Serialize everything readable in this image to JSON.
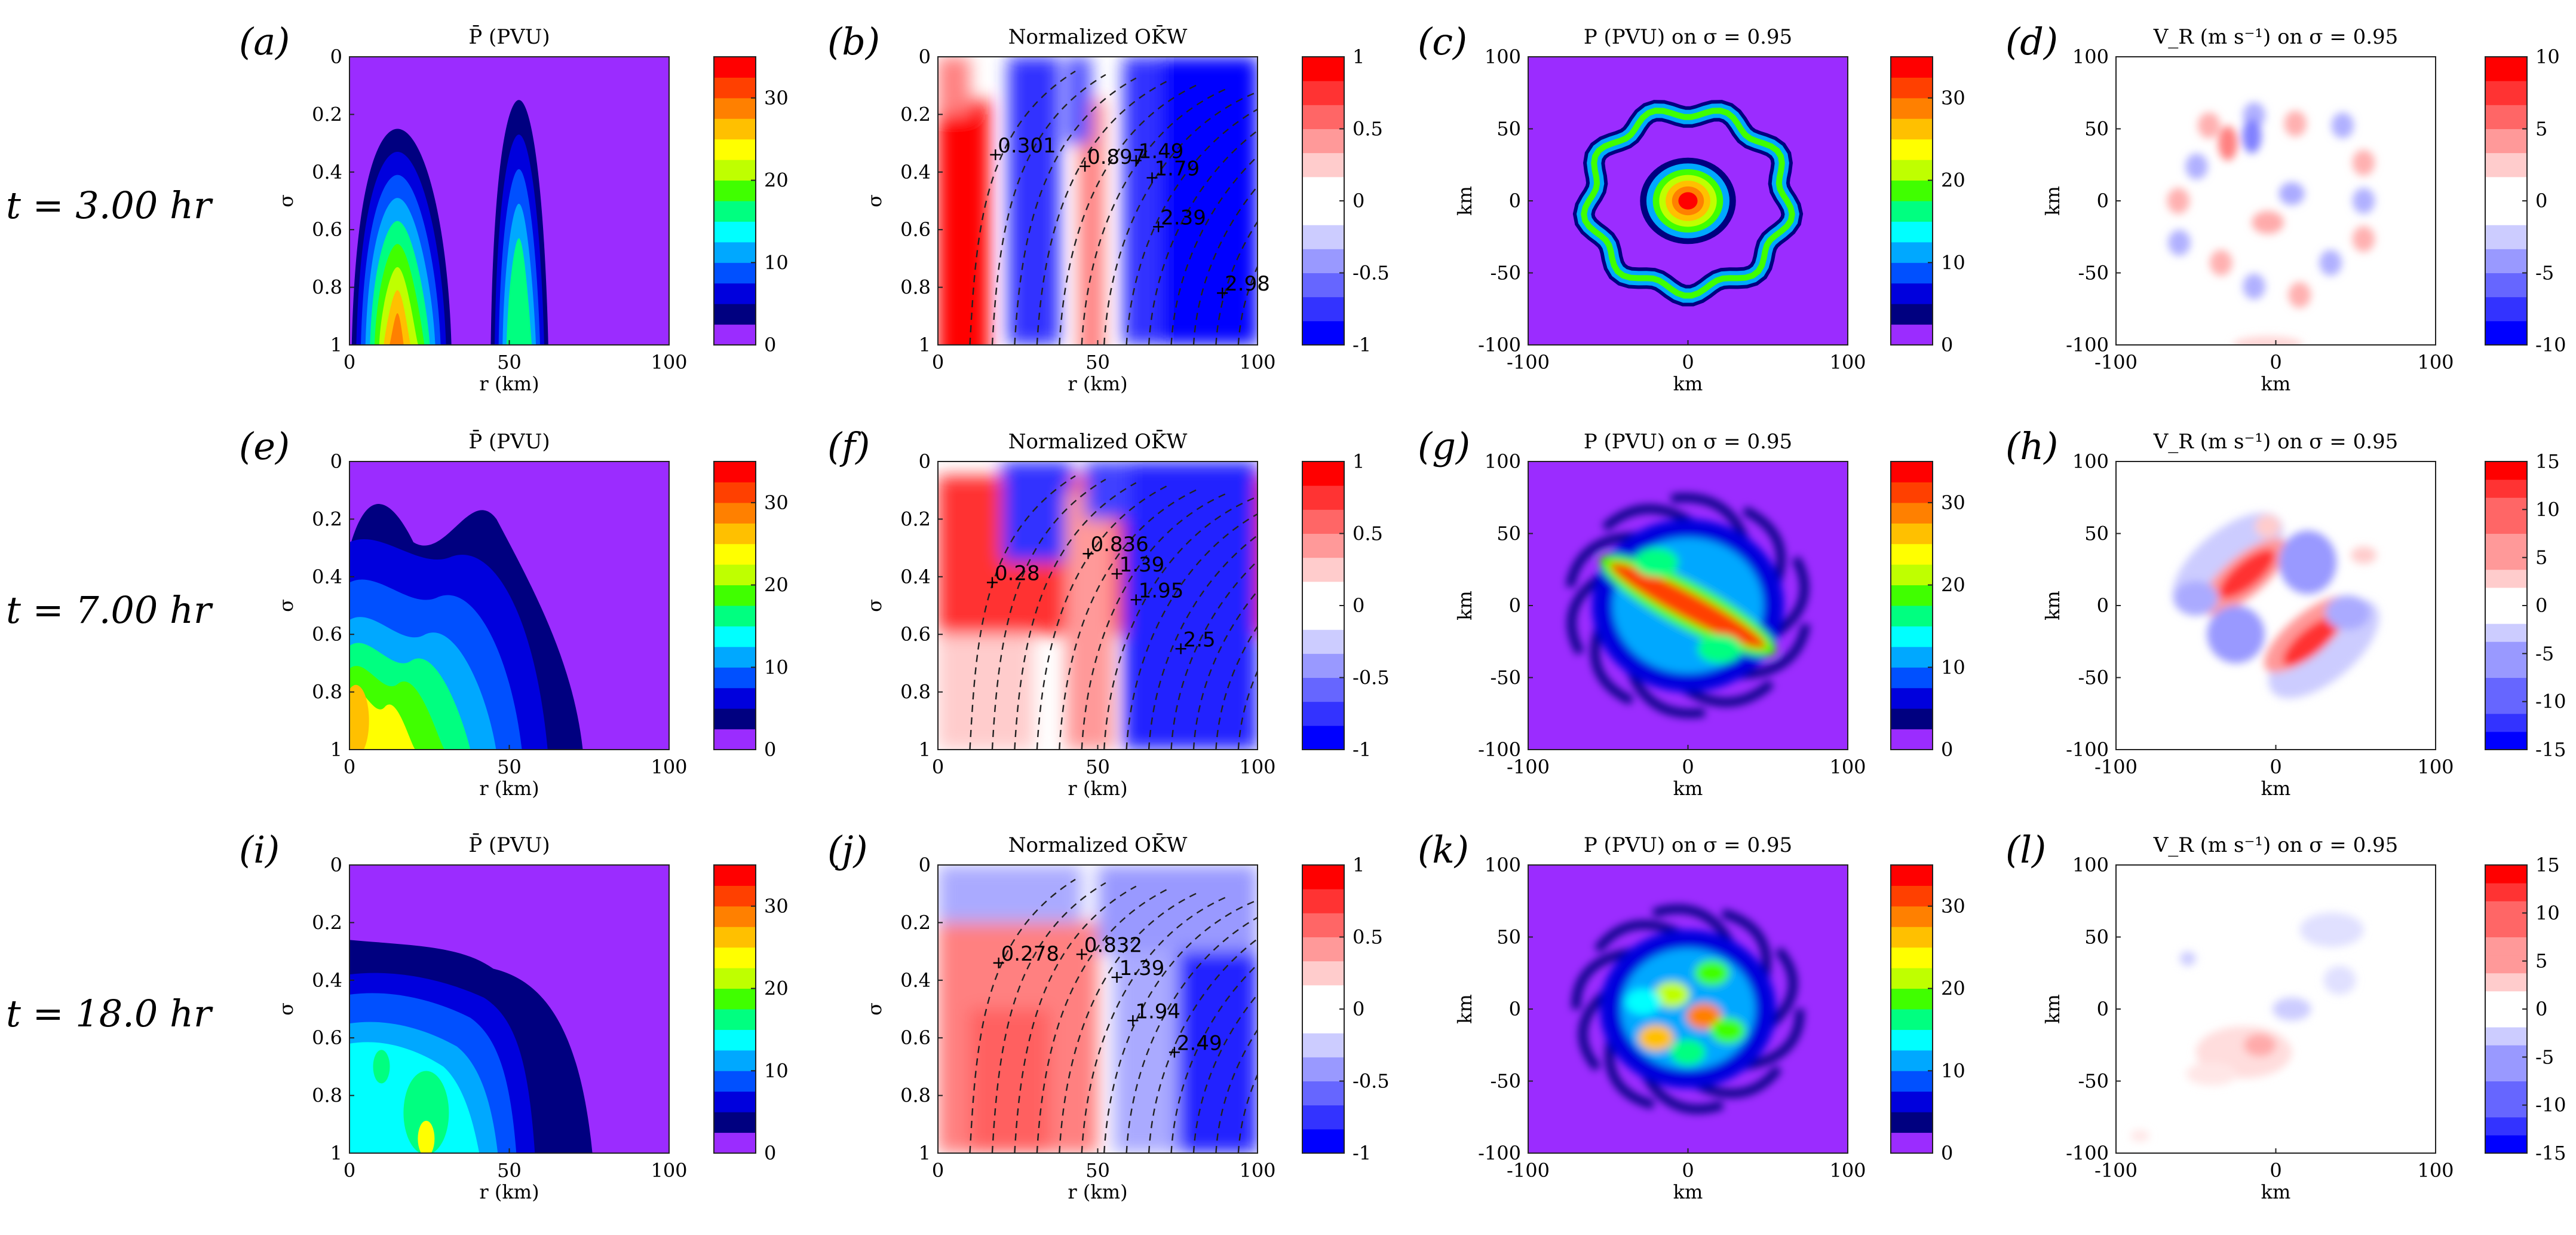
{
  "figure": {
    "row_labels": [
      "t = 3.00 hr",
      "t = 7.00 hr",
      "t = 18.0 hr"
    ]
  },
  "colormaps": {
    "pv": [
      "#9b2cff",
      "#000080",
      "#0000dd",
      "#0050ff",
      "#00a8ff",
      "#00ffff",
      "#00ff80",
      "#40ff00",
      "#bfff00",
      "#ffff00",
      "#ffc000",
      "#ff8000",
      "#ff4000",
      "#ff0000"
    ],
    "div": [
      "#0000ff",
      "#2a2aff",
      "#5555ff",
      "#8080ff",
      "#aaaaff",
      "#d5d5ff",
      "#ffffff",
      "#ffd5d5",
      "#ffaaaa",
      "#ff8080",
      "#ff5555",
      "#2a2aff",
      "#ff0000"
    ]
  },
  "chart_data": [
    {
      "panel": "(a)",
      "type": "heatmap",
      "kind": "pbar",
      "title": "P̄ (PVU)",
      "xlabel": "r (km)",
      "ylabel": "σ",
      "xlim": [
        0,
        100
      ],
      "ylim": [
        0,
        1
      ],
      "xticks": [
        "0",
        "50",
        "100"
      ],
      "yticks": [
        "0",
        "0.2",
        "0.4",
        "0.6",
        "0.8",
        "1"
      ],
      "colorbar": {
        "range": [
          0,
          35
        ],
        "ticks": [
          "0",
          "10",
          "20",
          "30"
        ]
      },
      "blobs": [
        {
          "r": 15,
          "sigma": 0.95,
          "peak": 30,
          "wr": 13,
          "ws": 0.45
        },
        {
          "r": 52,
          "sigma": 0.95,
          "peak": 14,
          "wr": 7,
          "ws": 0.45
        }
      ]
    },
    {
      "panel": "(b)",
      "type": "heatmap",
      "kind": "okw",
      "title": "Normalized OK̄W",
      "xlabel": "r (km)",
      "ylabel": "σ",
      "xlim": [
        0,
        100
      ],
      "ylim": [
        0,
        1
      ],
      "xticks": [
        "0",
        "50",
        "100"
      ],
      "yticks": [
        "0",
        "0.2",
        "0.4",
        "0.6",
        "0.8",
        "1"
      ],
      "colorbar": {
        "range": [
          -1,
          1
        ],
        "ticks": [
          "-1",
          "-0.5",
          "0",
          "0.5",
          "1"
        ]
      },
      "annotations": [
        {
          "label": "0.301",
          "r": 18,
          "sigma": 0.34
        },
        {
          "label": "0.897",
          "r": 46,
          "sigma": 0.38
        },
        {
          "label": "1.49",
          "r": 62,
          "sigma": 0.36
        },
        {
          "label": "1.79",
          "r": 67,
          "sigma": 0.42
        },
        {
          "label": "2.39",
          "r": 69,
          "sigma": 0.59
        },
        {
          "label": "2.98",
          "r": 89,
          "sigma": 0.82
        }
      ]
    },
    {
      "panel": "(c)",
      "type": "heatmap",
      "kind": "pplan",
      "title": "P (PVU) on σ = 0.95",
      "xlabel": "km",
      "ylabel": "km",
      "xlim": [
        -100,
        100
      ],
      "ylim": [
        -100,
        100
      ],
      "xticks": [
        "-100",
        "0",
        "100"
      ],
      "yticks": [
        "100",
        "50",
        "0",
        "-50",
        "-100"
      ],
      "colorbar": {
        "range": [
          0,
          35
        ],
        "ticks": [
          "0",
          "10",
          "20",
          "30"
        ]
      }
    },
    {
      "panel": "(d)",
      "type": "heatmap",
      "kind": "vr",
      "title": "V_R (m s⁻¹) on σ = 0.95",
      "xlabel": "km",
      "ylabel": "km",
      "xlim": [
        -100,
        100
      ],
      "ylim": [
        -100,
        100
      ],
      "xticks": [
        "-100",
        "0",
        "100"
      ],
      "yticks": [
        "100",
        "50",
        "0",
        "-50",
        "-100"
      ],
      "colorbar": {
        "range": [
          -10,
          10
        ],
        "ticks": [
          "-10",
          "-5",
          "0",
          "5",
          "10"
        ]
      }
    },
    {
      "panel": "(e)",
      "type": "heatmap",
      "kind": "pbar",
      "title": "P̄ (PVU)",
      "xlabel": "r (km)",
      "ylabel": "σ",
      "xlim": [
        0,
        100
      ],
      "ylim": [
        0,
        1
      ],
      "xticks": [
        "0",
        "50",
        "100"
      ],
      "yticks": [
        "0",
        "0.2",
        "0.4",
        "0.6",
        "0.8",
        "1"
      ],
      "colorbar": {
        "range": [
          0,
          35
        ],
        "ticks": [
          "0",
          "10",
          "20",
          "30"
        ]
      }
    },
    {
      "panel": "(f)",
      "type": "heatmap",
      "kind": "okw",
      "title": "Normalized OK̄W",
      "xlabel": "r (km)",
      "ylabel": "σ",
      "xlim": [
        0,
        100
      ],
      "ylim": [
        0,
        1
      ],
      "xticks": [
        "0",
        "50",
        "100"
      ],
      "yticks": [
        "0",
        "0.2",
        "0.4",
        "0.6",
        "0.8",
        "1"
      ],
      "colorbar": {
        "range": [
          -1,
          1
        ],
        "ticks": [
          "-1",
          "-0.5",
          "0",
          "0.5",
          "1"
        ]
      },
      "annotations": [
        {
          "label": "0.28",
          "r": 17,
          "sigma": 0.42
        },
        {
          "label": "0.836",
          "r": 47,
          "sigma": 0.32
        },
        {
          "label": "1.39",
          "r": 56,
          "sigma": 0.39
        },
        {
          "label": "1.95",
          "r": 62,
          "sigma": 0.48
        },
        {
          "label": "2.5",
          "r": 76,
          "sigma": 0.65
        }
      ]
    },
    {
      "panel": "(g)",
      "type": "heatmap",
      "kind": "pplan",
      "title": "P (PVU) on σ = 0.95",
      "xlabel": "km",
      "ylabel": "km",
      "xlim": [
        -100,
        100
      ],
      "ylim": [
        -100,
        100
      ],
      "xticks": [
        "-100",
        "0",
        "100"
      ],
      "yticks": [
        "100",
        "50",
        "0",
        "-50",
        "-100"
      ],
      "colorbar": {
        "range": [
          0,
          35
        ],
        "ticks": [
          "0",
          "10",
          "20",
          "30"
        ]
      }
    },
    {
      "panel": "(h)",
      "type": "heatmap",
      "kind": "vr",
      "title": "V_R (m s⁻¹) on σ = 0.95",
      "xlabel": "km",
      "ylabel": "km",
      "xlim": [
        -100,
        100
      ],
      "ylim": [
        -100,
        100
      ],
      "xticks": [
        "-100",
        "0",
        "100"
      ],
      "yticks": [
        "100",
        "50",
        "0",
        "-50",
        "-100"
      ],
      "colorbar": {
        "range": [
          -15,
          15
        ],
        "ticks": [
          "-15",
          "-10",
          "-5",
          "0",
          "5",
          "10",
          "15"
        ]
      }
    },
    {
      "panel": "(i)",
      "type": "heatmap",
      "kind": "pbar",
      "title": "P̄ (PVU)",
      "xlabel": "r (km)",
      "ylabel": "σ",
      "xlim": [
        0,
        100
      ],
      "ylim": [
        0,
        1
      ],
      "xticks": [
        "0",
        "50",
        "100"
      ],
      "yticks": [
        "0",
        "0.2",
        "0.4",
        "0.6",
        "0.8",
        "1"
      ],
      "colorbar": {
        "range": [
          0,
          35
        ],
        "ticks": [
          "0",
          "10",
          "20",
          "30"
        ]
      }
    },
    {
      "panel": "(j)",
      "type": "heatmap",
      "kind": "okw",
      "title": "Normalized OK̄W",
      "xlabel": "r (km)",
      "ylabel": "σ",
      "xlim": [
        0,
        100
      ],
      "ylim": [
        0,
        1
      ],
      "xticks": [
        "0",
        "50",
        "100"
      ],
      "yticks": [
        "0",
        "0.2",
        "0.4",
        "0.6",
        "0.8",
        "1"
      ],
      "colorbar": {
        "range": [
          -1,
          1
        ],
        "ticks": [
          "-1",
          "-0.5",
          "0",
          "0.5",
          "1"
        ]
      },
      "annotations": [
        {
          "label": "0.278",
          "r": 19,
          "sigma": 0.34
        },
        {
          "label": "0.832",
          "r": 45,
          "sigma": 0.31
        },
        {
          "label": "1.39",
          "r": 56,
          "sigma": 0.39
        },
        {
          "label": "1.94",
          "r": 61,
          "sigma": 0.54
        },
        {
          "label": "2.49",
          "r": 74,
          "sigma": 0.65
        }
      ]
    },
    {
      "panel": "(k)",
      "type": "heatmap",
      "kind": "pplan",
      "title": "P (PVU) on σ = 0.95",
      "xlabel": "km",
      "ylabel": "km",
      "xlim": [
        -100,
        100
      ],
      "ylim": [
        -100,
        100
      ],
      "xticks": [
        "-100",
        "0",
        "100"
      ],
      "yticks": [
        "100",
        "50",
        "0",
        "-50",
        "-100"
      ],
      "colorbar": {
        "range": [
          0,
          35
        ],
        "ticks": [
          "0",
          "10",
          "20",
          "30"
        ]
      }
    },
    {
      "panel": "(l)",
      "type": "heatmap",
      "kind": "vr",
      "title": "V_R (m s⁻¹) on σ = 0.95",
      "xlabel": "km",
      "ylabel": "km",
      "xlim": [
        -100,
        100
      ],
      "ylim": [
        -100,
        100
      ],
      "xticks": [
        "-100",
        "0",
        "100"
      ],
      "yticks": [
        "100",
        "50",
        "0",
        "-50",
        "-100"
      ],
      "colorbar": {
        "range": [
          -15,
          15
        ],
        "ticks": [
          "-15",
          "-10",
          "-5",
          "0",
          "5",
          "10",
          "15"
        ]
      }
    }
  ]
}
